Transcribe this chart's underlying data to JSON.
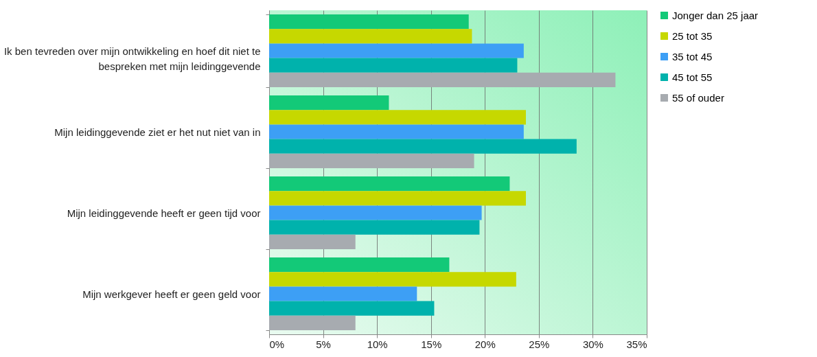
{
  "chart_data": {
    "type": "bar",
    "orientation": "horizontal",
    "categories": [
      "Ik ben tevreden over mijn ontwikkeling en hoef dit niet te bespreken met mijn leidinggevende",
      "Mijn leidinggevende ziet er het nut niet van in",
      "Mijn leidinggevende heeft er geen tijd voor",
      "Mijn werkgever heeft er geen geld voor"
    ],
    "series": [
      {
        "name": "Jonger dan 25 jaar",
        "color": "#13c978",
        "values": [
          18.5,
          11.1,
          22.3,
          16.7
        ]
      },
      {
        "name": "25 tot 35",
        "color": "#c6d800",
        "values": [
          18.8,
          23.8,
          23.8,
          22.9
        ]
      },
      {
        "name": "35 tot 45",
        "color": "#3d9ff5",
        "values": [
          23.6,
          23.6,
          19.7,
          13.7
        ]
      },
      {
        "name": "45 tot 55",
        "color": "#00b2ac",
        "values": [
          23.0,
          28.5,
          19.5,
          15.3
        ]
      },
      {
        "name": "55 of ouder",
        "color": "#a7abb0",
        "values": [
          32.1,
          19.0,
          8.0,
          8.0
        ]
      }
    ],
    "xlim": [
      0,
      35
    ],
    "xticks": [
      {
        "value": 0,
        "label": "0%"
      },
      {
        "value": 5,
        "label": "5%"
      },
      {
        "value": 10,
        "label": "10%"
      },
      {
        "value": 15,
        "label": "15%"
      },
      {
        "value": 20,
        "label": "20%"
      },
      {
        "value": 25,
        "label": "25%"
      },
      {
        "value": 30,
        "label": "30%"
      },
      {
        "value": 35,
        "label": "35%"
      }
    ],
    "grid": "x",
    "legend": "right"
  }
}
